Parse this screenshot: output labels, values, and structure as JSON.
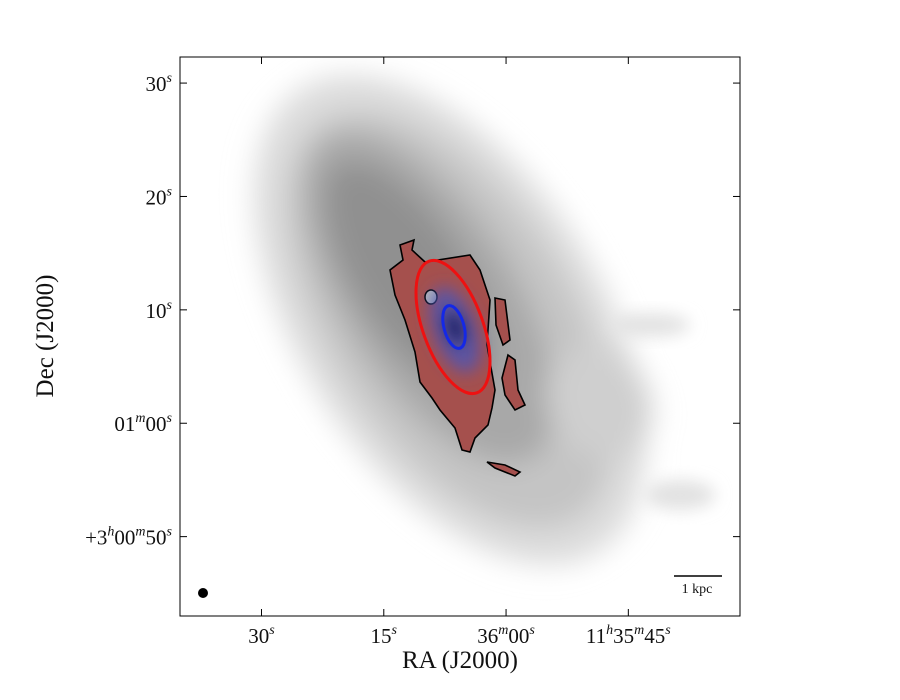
{
  "chart_data": {
    "type": "sky-image",
    "x_label": "RA (J2000)",
    "y_label": "Dec (J2000)",
    "xlim": [
      41800.0,
      41731.3
    ],
    "xticks": [
      {
        "value": 41790,
        "label": "30s"
      },
      {
        "value": 41775,
        "label": "15s"
      },
      {
        "value": 41760,
        "label": "36m00s"
      },
      {
        "value": 41745,
        "label": "11h35m45s"
      }
    ],
    "ylim": [
      10843.0,
      10892.3
    ],
    "yticks": [
      {
        "value": 10890,
        "label": "30s"
      },
      {
        "value": 10880,
        "label": "20s"
      },
      {
        "value": 10870,
        "label": "10s"
      },
      {
        "value": 10860,
        "label": "01m00s"
      },
      {
        "value": 10850,
        "label": "+3h00m50s"
      }
    ],
    "scale_bar_label": "1 kpc"
  }
}
